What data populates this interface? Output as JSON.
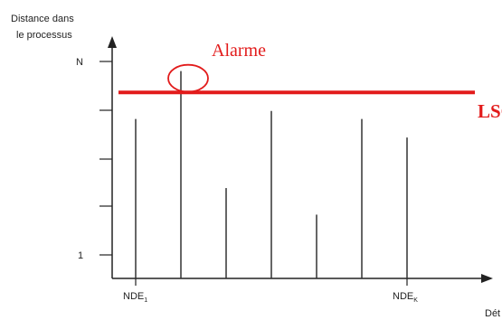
{
  "chart_data": {
    "type": "bar",
    "ylabel_lines": [
      "Distance dans",
      "le processus"
    ],
    "xlabel": "Dét",
    "x_tick_labels": [
      {
        "index": 0,
        "base": "NDE",
        "sub": "1"
      },
      {
        "index": 6,
        "base": "NDE",
        "sub": "K"
      }
    ],
    "y_tick_labels": [
      {
        "value": 1,
        "label": "1"
      },
      {
        "value": 9,
        "label": "N"
      }
    ],
    "ylim": [
      0,
      10
    ],
    "values": [
      6,
      7.8,
      3.4,
      6.3,
      2.4,
      6,
      5.3
    ],
    "limit": {
      "value": 7,
      "label": "LSC",
      "color": "#e21b1b"
    },
    "alarm": {
      "label": "Alarme",
      "bar_index": 1,
      "color": "#e21b1b"
    },
    "grid": false,
    "colors": {
      "bars": "#333333",
      "axis": "#222222"
    }
  }
}
